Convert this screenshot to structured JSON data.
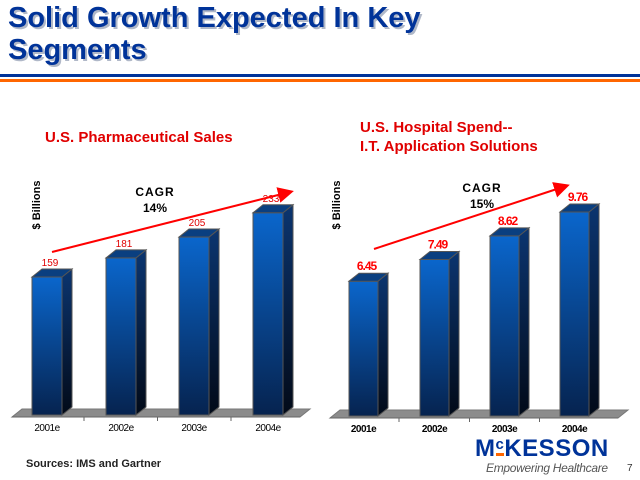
{
  "slide": {
    "title": "Solid Growth Expected In Key Segments",
    "title_line1": "Solid Growth Expected In Key",
    "title_line2": "Segments",
    "source": "Sources:  IMS and Gartner",
    "logo": {
      "pre": "M",
      "c": "c",
      "post": "KESSON"
    },
    "tagline": "Empowering Healthcare",
    "page_number": "7",
    "colors": {
      "title": "#003399",
      "accent": "#ff6600",
      "labels": "#e00000"
    }
  },
  "chart_data": [
    {
      "type": "bar",
      "title": "U.S. Pharmaceutical Sales",
      "ylabel": "$ Billions",
      "categories": [
        "2001e",
        "2002e",
        "2003e",
        "2004e"
      ],
      "values": [
        159,
        181,
        205,
        233
      ],
      "data_labels": [
        "159",
        "181",
        "205",
        "233"
      ],
      "annotation": {
        "line1": "CAGR",
        "line2": "14%"
      },
      "ylim": [
        0,
        240
      ]
    },
    {
      "type": "bar",
      "title_line1": "U.S. Hospital Spend--",
      "title_line2": "I.T. Application Solutions",
      "title": "U.S. Hospital Spend-- I.T. Application Solutions",
      "ylabel": "$ Billions",
      "categories": [
        "2001e",
        "2002e",
        "2003e",
        "2004e"
      ],
      "values": [
        6.45,
        7.49,
        8.62,
        9.76
      ],
      "data_labels": [
        "6.45",
        "7.49",
        "8.62",
        "9.76"
      ],
      "annotation": {
        "line1": "CAGR",
        "line2": "15%"
      },
      "ylim": [
        0,
        10
      ]
    }
  ]
}
